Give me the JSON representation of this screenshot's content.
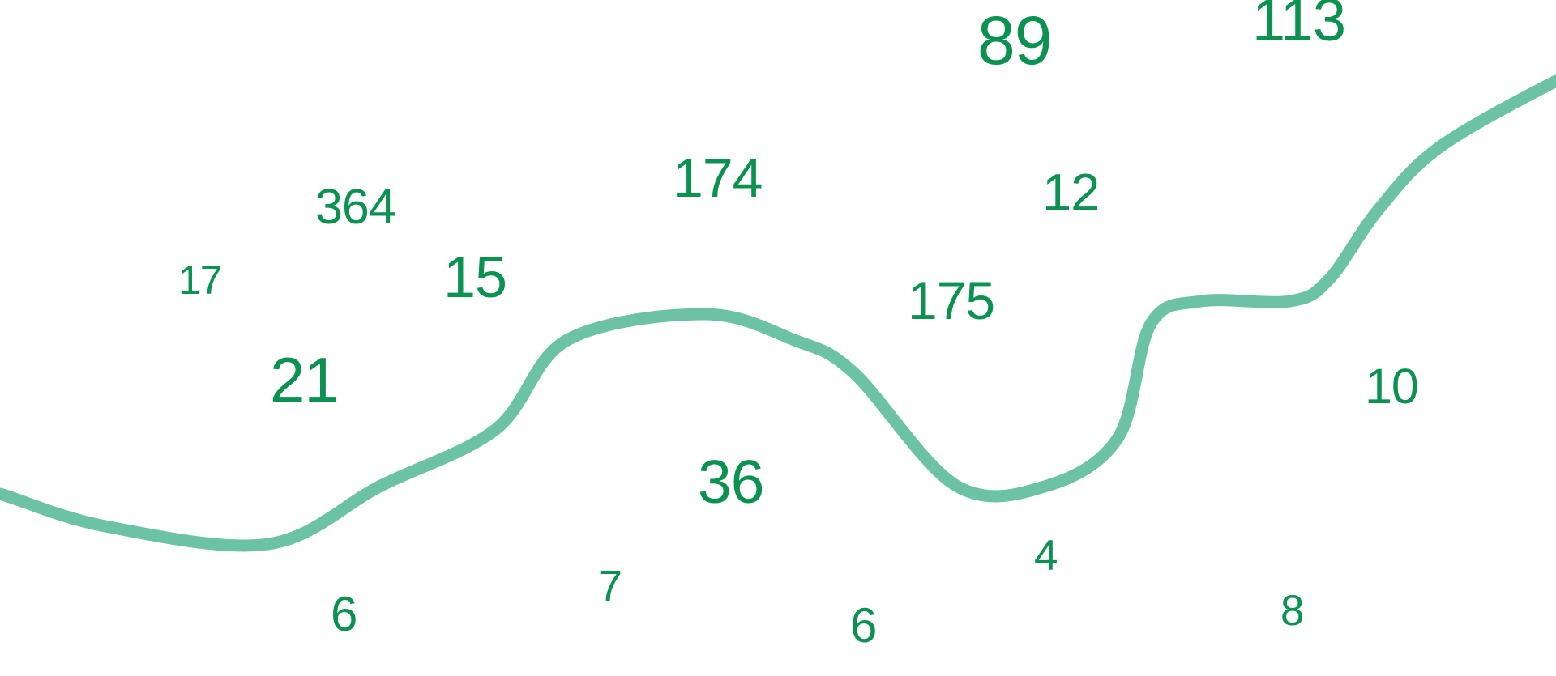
{
  "colors": {
    "number_text": "#0b9150",
    "curve": "#6cc2a4",
    "background": "#ffffff"
  },
  "numbers": [
    "89",
    "113",
    "174",
    "12",
    "364",
    "17",
    "15",
    "175",
    "21",
    "10",
    "36",
    "4",
    "7",
    "6",
    "6",
    "8"
  ]
}
